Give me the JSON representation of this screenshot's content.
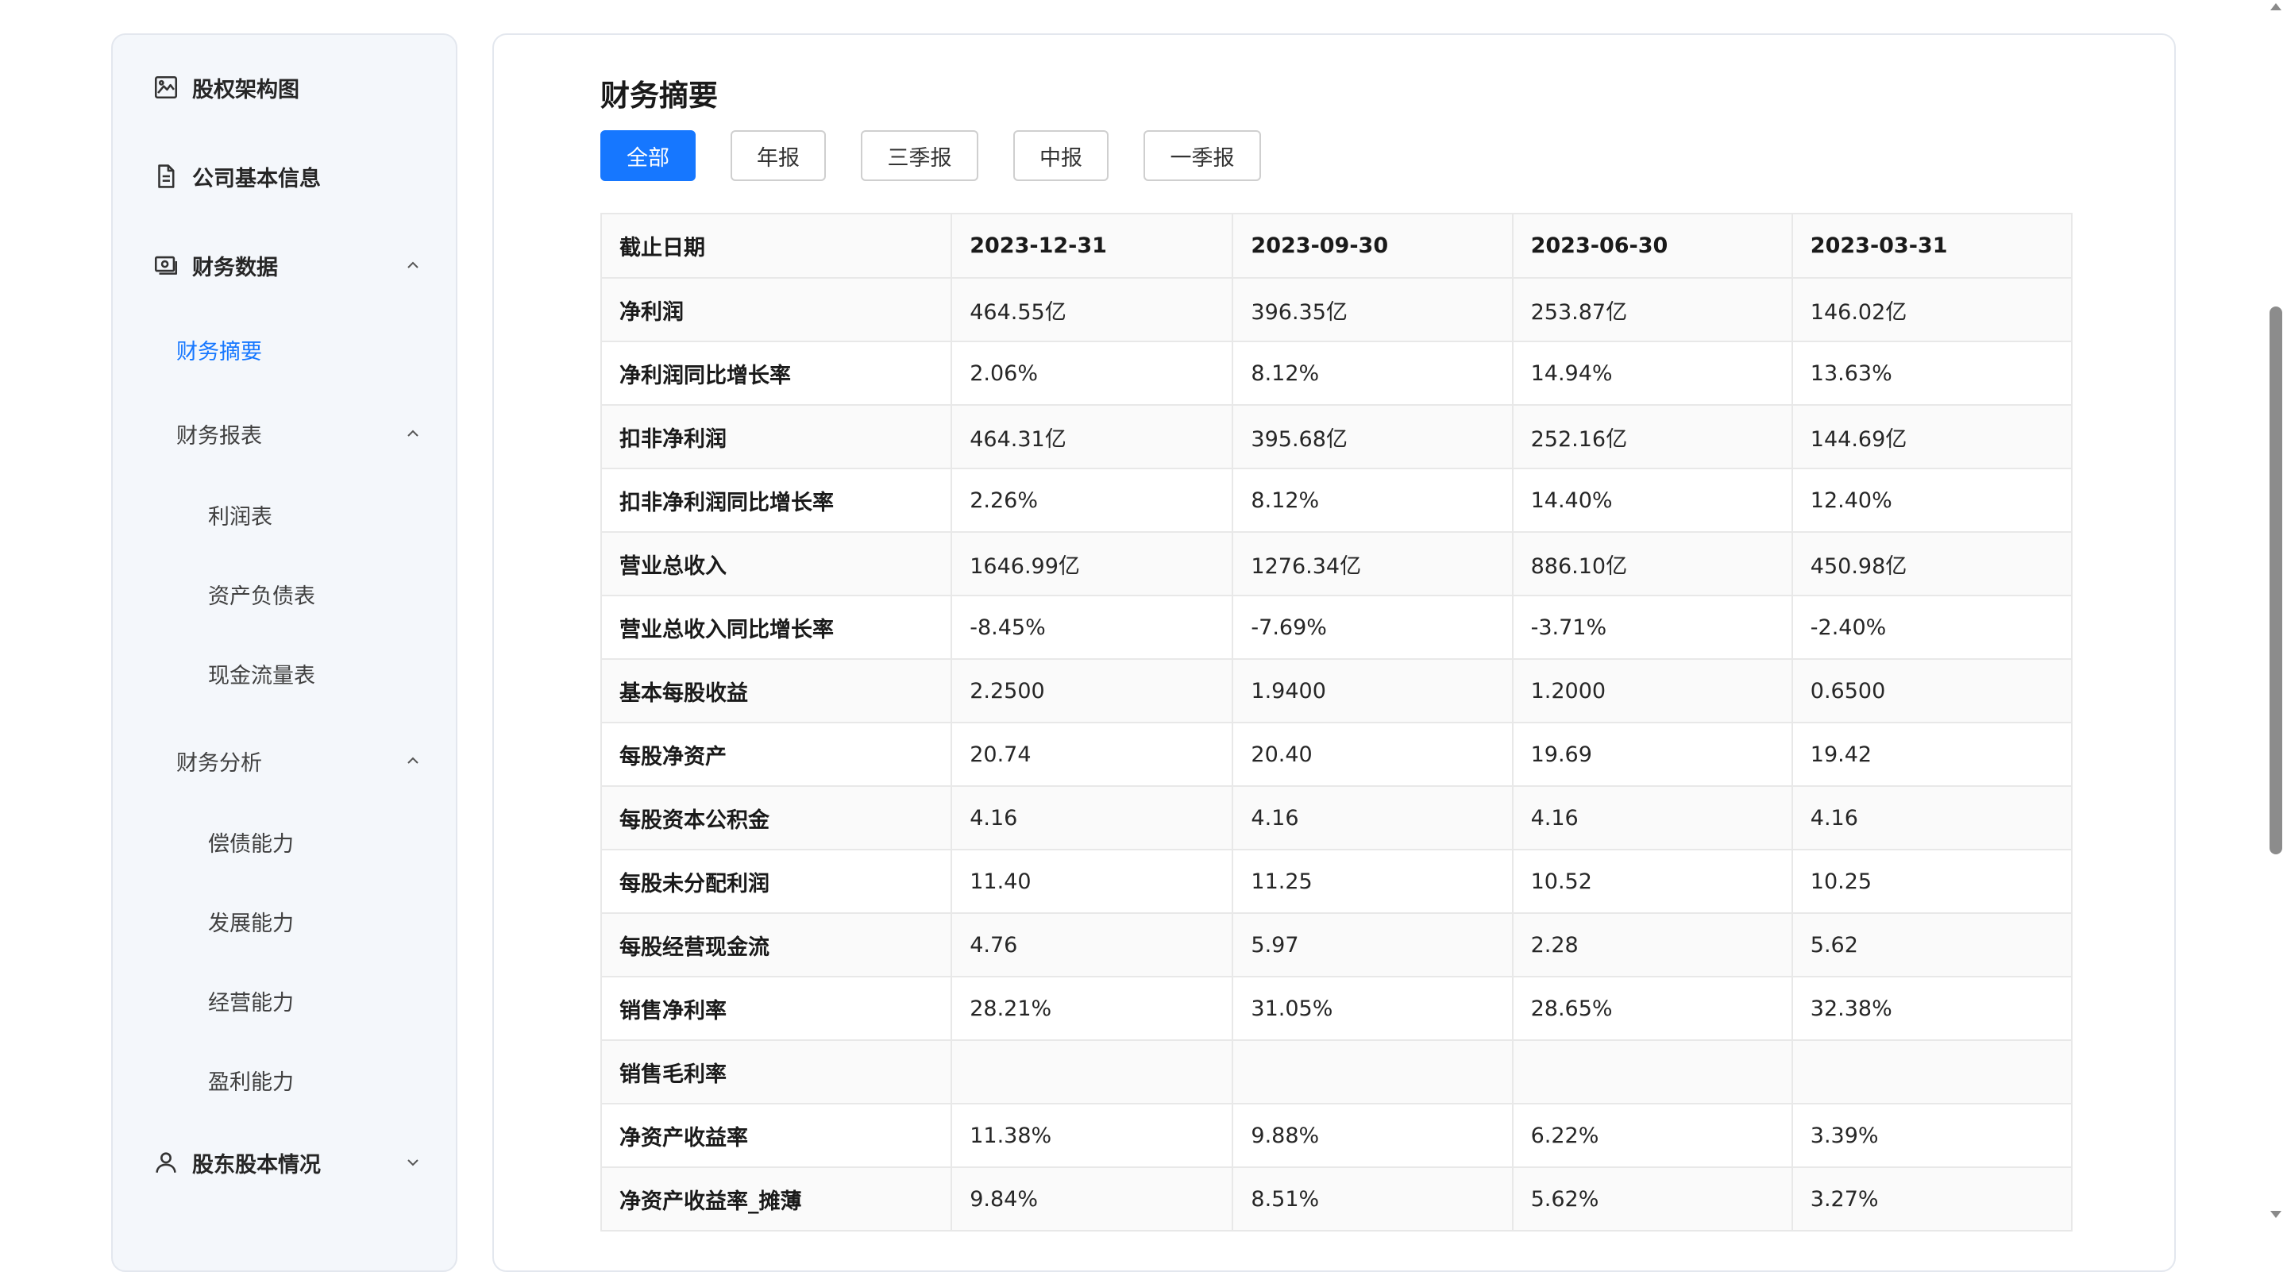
{
  "sidebar": {
    "equity_chart": "股权架构图",
    "company_info": "公司基本信息",
    "financial_data": "财务数据",
    "summary": "财务摘要",
    "statements": "财务报表",
    "income": "利润表",
    "balance": "资产负债表",
    "cashflow": "现金流量表",
    "analysis": "财务分析",
    "solvency": "偿债能力",
    "growth": "发展能力",
    "operation": "经营能力",
    "profitability": "盈利能力",
    "shareholders": "股东股本情况"
  },
  "main": {
    "title": "财务摘要",
    "tabs": [
      "全部",
      "年报",
      "三季报",
      "中报",
      "一季报"
    ],
    "active_tab": "全部",
    "accent_color": "#1677ff"
  },
  "table": {
    "headers": [
      "截止日期",
      "2023-12-31",
      "2023-09-30",
      "2023-06-30",
      "2023-03-31"
    ],
    "rows": [
      [
        "净利润",
        "464.55亿",
        "396.35亿",
        "253.87亿",
        "146.02亿"
      ],
      [
        "净利润同比增长率",
        "2.06%",
        "8.12%",
        "14.94%",
        "13.63%"
      ],
      [
        "扣非净利润",
        "464.31亿",
        "395.68亿",
        "252.16亿",
        "144.69亿"
      ],
      [
        "扣非净利润同比增长率",
        "2.26%",
        "8.12%",
        "14.40%",
        "12.40%"
      ],
      [
        "营业总收入",
        "1646.99亿",
        "1276.34亿",
        "886.10亿",
        "450.98亿"
      ],
      [
        "营业总收入同比增长率",
        "-8.45%",
        "-7.69%",
        "-3.71%",
        "-2.40%"
      ],
      [
        "基本每股收益",
        "2.2500",
        "1.9400",
        "1.2000",
        "0.6500"
      ],
      [
        "每股净资产",
        "20.74",
        "20.40",
        "19.69",
        "19.42"
      ],
      [
        "每股资本公积金",
        "4.16",
        "4.16",
        "4.16",
        "4.16"
      ],
      [
        "每股未分配利润",
        "11.40",
        "11.25",
        "10.52",
        "10.25"
      ],
      [
        "每股经营现金流",
        "4.76",
        "5.97",
        "2.28",
        "5.62"
      ],
      [
        "销售净利率",
        "28.21%",
        "31.05%",
        "28.65%",
        "32.38%"
      ],
      [
        "销售毛利率",
        "",
        "",
        "",
        ""
      ],
      [
        "净资产收益率",
        "11.38%",
        "9.88%",
        "6.22%",
        "3.39%"
      ],
      [
        "净资产收益率_摊薄",
        "9.84%",
        "8.51%",
        "5.62%",
        "3.27%"
      ]
    ]
  }
}
